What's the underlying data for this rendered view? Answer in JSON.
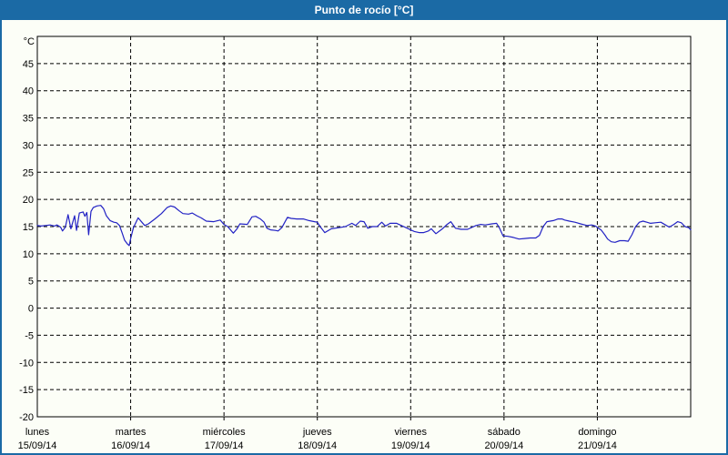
{
  "window": {
    "title": "Punto de rocío [°C]"
  },
  "colors": {
    "titlebar_bg": "#1b6aa5",
    "titlebar_text": "#ffffff",
    "window_border": "#1b6aa5",
    "content_bg": "#fcfef7",
    "plot_border": "#000000",
    "grid": "#000000",
    "line": "#2222c4"
  },
  "chart_data": {
    "type": "line",
    "title": "Punto de rocío [°C]",
    "unit_label": "°C",
    "ylim": [
      -20,
      50
    ],
    "yticks": [
      45,
      40,
      35,
      30,
      25,
      20,
      15,
      10,
      5,
      0,
      -5,
      -10,
      -15,
      -20
    ],
    "xlim_days": [
      0,
      7
    ],
    "grid": "dashed",
    "legend": "none",
    "x_days": [
      {
        "name": "lunes",
        "date": "15/09/14"
      },
      {
        "name": "martes",
        "date": "16/09/14"
      },
      {
        "name": "miércoles",
        "date": "17/09/14"
      },
      {
        "name": "jueves",
        "date": "18/09/14"
      },
      {
        "name": "viernes",
        "date": "19/09/14"
      },
      {
        "name": "sábado",
        "date": "20/09/14"
      },
      {
        "name": "domingo",
        "date": "21/09/14"
      }
    ],
    "series": [
      {
        "name": "Punto de rocío",
        "color": "#2222c4",
        "x": [
          0.0,
          0.04,
          0.088,
          0.137,
          0.185,
          0.21,
          0.25,
          0.27,
          0.3,
          0.33,
          0.36,
          0.4,
          0.42,
          0.45,
          0.49,
          0.51,
          0.53,
          0.55,
          0.575,
          0.6,
          0.64,
          0.68,
          0.71,
          0.74,
          0.78,
          0.82,
          0.85,
          0.88,
          0.91,
          0.935,
          0.965,
          0.985,
          1.0,
          1.03,
          1.08,
          1.12,
          1.15,
          1.19,
          1.26,
          1.33,
          1.39,
          1.43,
          1.47,
          1.52,
          1.56,
          1.62,
          1.66,
          1.71,
          1.755,
          1.81,
          1.89,
          1.96,
          2.0,
          2.04,
          2.1,
          2.14,
          2.17,
          2.25,
          2.3,
          2.34,
          2.39,
          2.43,
          2.46,
          2.5,
          2.55,
          2.58,
          2.62,
          2.68,
          2.72,
          2.78,
          2.85,
          2.91,
          2.97,
          3.0,
          3.03,
          3.08,
          3.15,
          3.23,
          3.3,
          3.37,
          3.41,
          3.46,
          3.5,
          3.54,
          3.59,
          3.64,
          3.69,
          3.73,
          3.78,
          3.85,
          3.9,
          3.95,
          4.0,
          4.04,
          4.09,
          4.14,
          4.19,
          4.22,
          4.27,
          4.34,
          4.39,
          4.43,
          4.48,
          4.54,
          4.61,
          4.7,
          4.75,
          4.8,
          4.87,
          4.92,
          4.95,
          4.99,
          5.04,
          5.1,
          5.16,
          5.22,
          5.28,
          5.34,
          5.38,
          5.42,
          5.46,
          5.53,
          5.58,
          5.62,
          5.65,
          5.7,
          5.76,
          5.82,
          5.89,
          5.94,
          5.98,
          6.01,
          6.04,
          6.08,
          6.11,
          6.15,
          6.19,
          6.24,
          6.29,
          6.33,
          6.37,
          6.41,
          6.45,
          6.49,
          6.53,
          6.57,
          6.62,
          6.68,
          6.73,
          6.77,
          6.82,
          6.86,
          6.9,
          6.94,
          6.98,
          7.0
        ],
        "y": [
          15.2,
          15.1,
          15.2,
          15.3,
          15.1,
          15.3,
          14.9,
          14.2,
          14.9,
          17.2,
          14.6,
          17.0,
          14.3,
          17.5,
          17.7,
          16.9,
          17.6,
          13.5,
          17.8,
          18.5,
          18.8,
          18.9,
          18.3,
          17.0,
          16.1,
          15.8,
          15.7,
          15.2,
          13.8,
          12.5,
          11.8,
          11.5,
          12.8,
          14.8,
          16.6,
          15.8,
          15.2,
          15.5,
          16.4,
          17.4,
          18.5,
          18.8,
          18.6,
          17.9,
          17.4,
          17.3,
          17.5,
          17.0,
          16.6,
          16.0,
          15.9,
          16.2,
          15.4,
          15.0,
          13.8,
          14.6,
          15.5,
          15.4,
          16.8,
          16.9,
          16.4,
          15.8,
          14.7,
          14.4,
          14.3,
          14.2,
          14.8,
          16.7,
          16.5,
          16.4,
          16.4,
          16.1,
          15.9,
          15.8,
          15.0,
          13.9,
          14.6,
          14.8,
          15.0,
          15.6,
          15.2,
          16.0,
          15.9,
          14.7,
          15.0,
          15.0,
          15.8,
          15.1,
          15.6,
          15.6,
          15.2,
          14.8,
          14.4,
          14.1,
          13.9,
          13.9,
          14.2,
          14.6,
          13.7,
          14.6,
          15.4,
          15.9,
          14.7,
          14.5,
          14.5,
          15.2,
          15.4,
          15.3,
          15.5,
          15.6,
          14.8,
          13.3,
          13.2,
          13.0,
          12.7,
          12.8,
          12.9,
          12.9,
          13.4,
          15.0,
          15.9,
          16.1,
          16.4,
          16.4,
          16.2,
          16.0,
          15.8,
          15.5,
          15.2,
          15.3,
          15.1,
          14.7,
          14.4,
          13.5,
          12.7,
          12.2,
          12.1,
          12.4,
          12.4,
          12.3,
          13.5,
          15.0,
          15.8,
          16.0,
          15.8,
          15.6,
          15.7,
          15.8,
          15.3,
          14.9,
          15.4,
          15.9,
          15.7,
          15.0,
          14.8,
          14.4
        ]
      }
    ]
  }
}
